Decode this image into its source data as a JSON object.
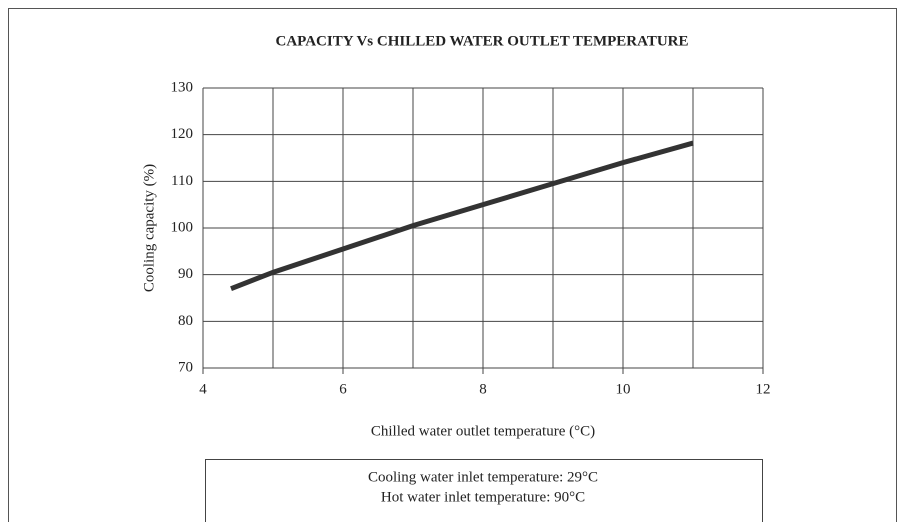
{
  "chart_data": {
    "type": "line",
    "title": "CAPACITY Vs CHILLED WATER OUTLET TEMPERATURE",
    "xlabel": "Chilled water outlet temperature (°C)",
    "ylabel": "Cooling capacity (%)",
    "x": [
      4.4,
      5,
      6,
      7,
      8,
      9,
      10,
      11
    ],
    "series": [
      {
        "name": "Cooling capacity",
        "color": "#333333",
        "values": [
          87,
          90.5,
          95.5,
          100.5,
          105,
          109.5,
          114,
          118.2
        ]
      }
    ],
    "xlim": [
      4,
      12
    ],
    "ylim": [
      70,
      130
    ],
    "xticks": [
      4,
      6,
      8,
      10,
      12
    ],
    "xminor_grid": [
      5,
      7,
      9,
      11
    ],
    "yticks": [
      70,
      80,
      90,
      100,
      110,
      120,
      130
    ],
    "grid": true,
    "notes": [
      "Cooling water inlet temperature: 29°C",
      "Hot water inlet temperature: 90°C"
    ]
  }
}
